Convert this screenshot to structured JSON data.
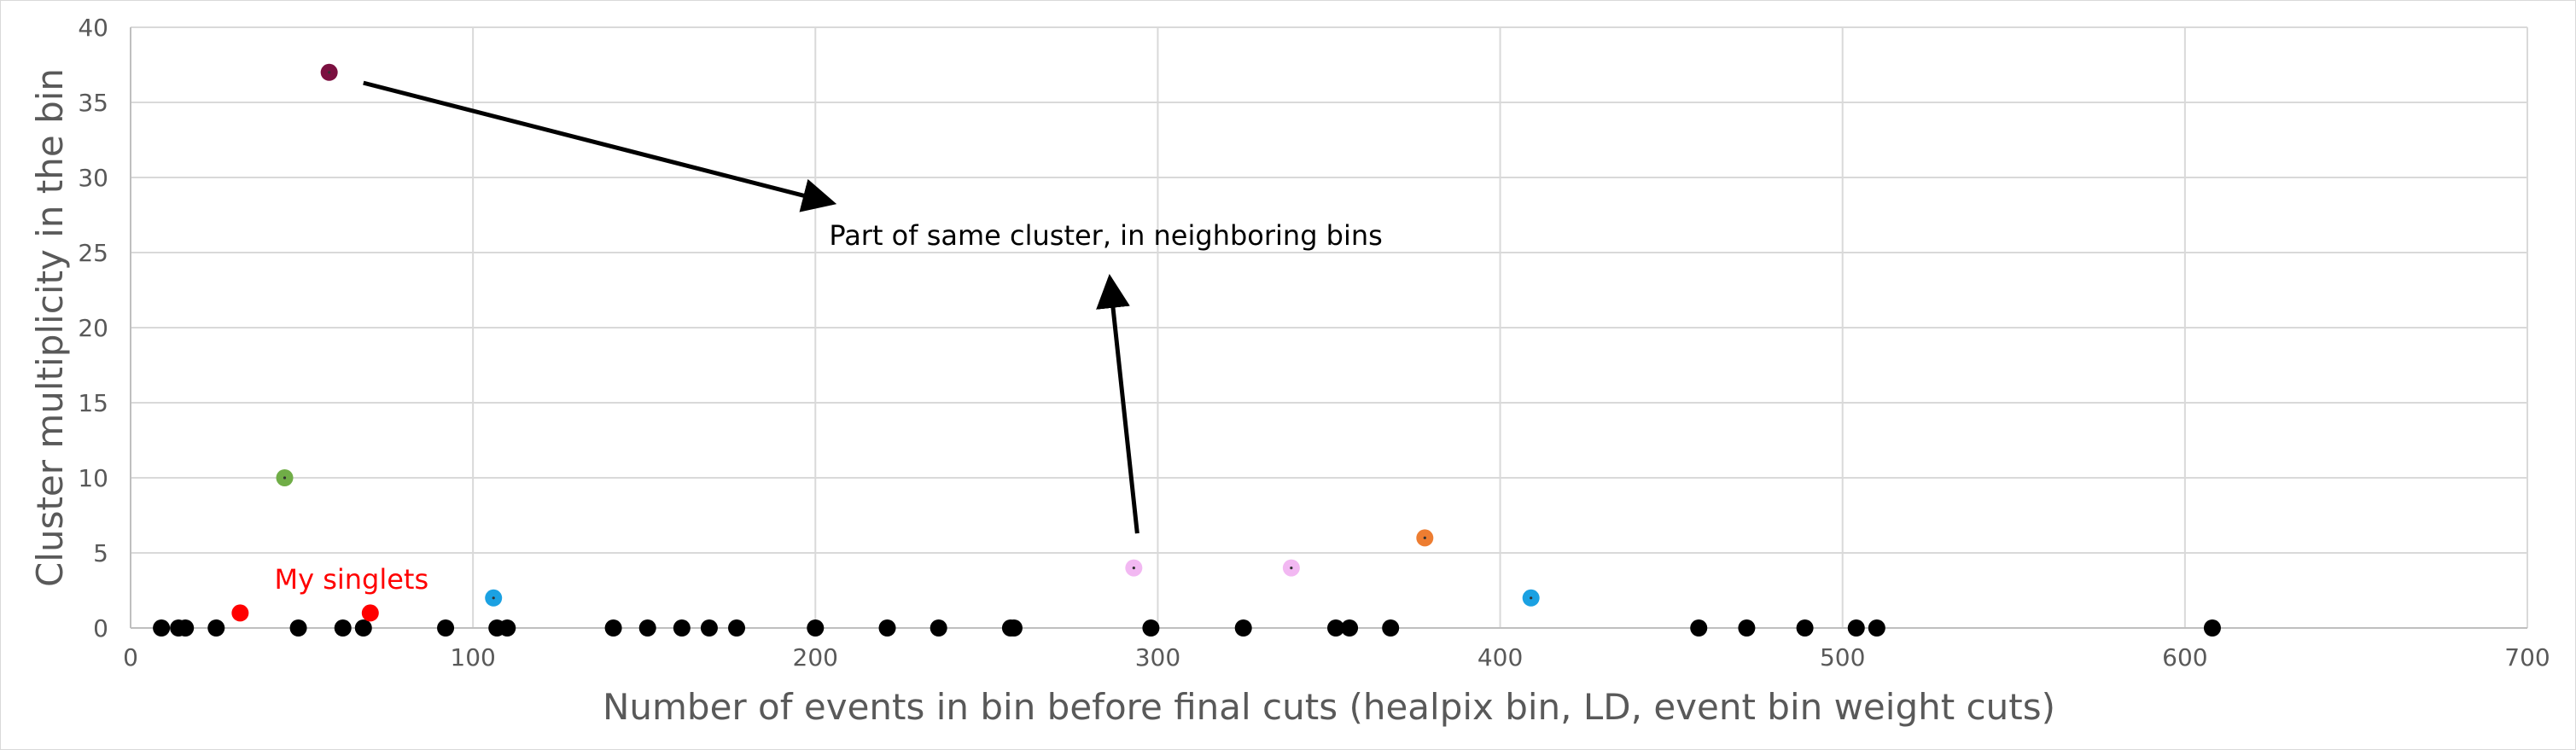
{
  "chart_data": {
    "type": "scatter",
    "title": "",
    "xlabel": "Number of events in bin before final cuts (healpix bin, LD, event bin weight cuts)",
    "ylabel": "Cluster multiplicity in the bin",
    "xlim": [
      0,
      700
    ],
    "ylim": [
      0,
      40
    ],
    "xticks": [
      0,
      100,
      200,
      300,
      400,
      500,
      600,
      700
    ],
    "yticks": [
      0,
      5,
      10,
      15,
      20,
      25,
      30,
      35,
      40
    ],
    "grid": true,
    "legend": "none",
    "points": [
      {
        "x": 9,
        "y": 0,
        "color": "#000000"
      },
      {
        "x": 14,
        "y": 0,
        "color": "#000000"
      },
      {
        "x": 16,
        "y": 0,
        "color": "#000000"
      },
      {
        "x": 25,
        "y": 0,
        "color": "#000000"
      },
      {
        "x": 49,
        "y": 0,
        "color": "#000000"
      },
      {
        "x": 62,
        "y": 0,
        "color": "#000000"
      },
      {
        "x": 68,
        "y": 0,
        "color": "#000000"
      },
      {
        "x": 92,
        "y": 0,
        "color": "#000000"
      },
      {
        "x": 107,
        "y": 0,
        "color": "#000000"
      },
      {
        "x": 110,
        "y": 0,
        "color": "#000000"
      },
      {
        "x": 141,
        "y": 0,
        "color": "#000000"
      },
      {
        "x": 151,
        "y": 0,
        "color": "#000000"
      },
      {
        "x": 161,
        "y": 0,
        "color": "#000000"
      },
      {
        "x": 169,
        "y": 0,
        "color": "#000000"
      },
      {
        "x": 177,
        "y": 0,
        "color": "#000000"
      },
      {
        "x": 200,
        "y": 0,
        "color": "#000000"
      },
      {
        "x": 221,
        "y": 0,
        "color": "#000000"
      },
      {
        "x": 236,
        "y": 0,
        "color": "#000000"
      },
      {
        "x": 257,
        "y": 0,
        "color": "#000000"
      },
      {
        "x": 258,
        "y": 0,
        "color": "#000000"
      },
      {
        "x": 298,
        "y": 0,
        "color": "#000000"
      },
      {
        "x": 325,
        "y": 0,
        "color": "#000000"
      },
      {
        "x": 352,
        "y": 0,
        "color": "#000000"
      },
      {
        "x": 356,
        "y": 0,
        "color": "#000000"
      },
      {
        "x": 368,
        "y": 0,
        "color": "#000000"
      },
      {
        "x": 458,
        "y": 0,
        "color": "#000000"
      },
      {
        "x": 472,
        "y": 0,
        "color": "#000000"
      },
      {
        "x": 489,
        "y": 0,
        "color": "#000000"
      },
      {
        "x": 504,
        "y": 0,
        "color": "#000000"
      },
      {
        "x": 510,
        "y": 0,
        "color": "#000000"
      },
      {
        "x": 608,
        "y": 0,
        "color": "#000000"
      },
      {
        "x": 32,
        "y": 1,
        "color": "#ff0000"
      },
      {
        "x": 70,
        "y": 1,
        "color": "#ff0000"
      },
      {
        "x": 106,
        "y": 2,
        "color": "#1ba1e2"
      },
      {
        "x": 409,
        "y": 2,
        "color": "#1ba1e2"
      },
      {
        "x": 293,
        "y": 4,
        "color": "#f2b8f2"
      },
      {
        "x": 339,
        "y": 4,
        "color": "#f2b8f2"
      },
      {
        "x": 378,
        "y": 6,
        "color": "#ed7d31"
      },
      {
        "x": 45,
        "y": 10,
        "color": "#70ad47"
      },
      {
        "x": 58,
        "y": 37,
        "color": "#7b1040"
      }
    ],
    "annotations": [
      {
        "text": "Part of same cluster, in neighboring bins",
        "x": 204,
        "y": 25.5,
        "color": "#000000"
      },
      {
        "text": "My singlets",
        "x": 42,
        "y": 2.6,
        "color": "#ff0000"
      }
    ],
    "arrows": [
      {
        "from": [
          68,
          36.3
        ],
        "to": [
          205,
          28.3
        ]
      },
      {
        "from": [
          294,
          6.3
        ],
        "to": [
          286,
          23.3
        ]
      }
    ]
  }
}
